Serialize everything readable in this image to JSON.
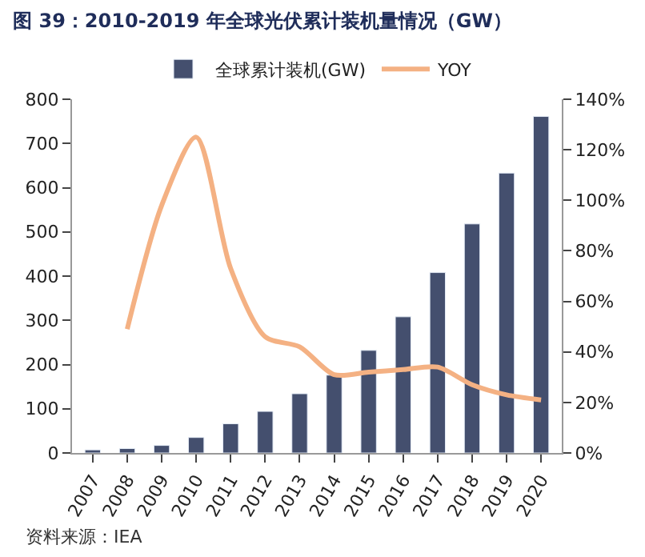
{
  "chart_data": {
    "type": "bar",
    "title": "图 39：2010-2019 年全球光伏累计装机量情况（GW）",
    "categories": [
      "2007",
      "2008",
      "2009",
      "2010",
      "2011",
      "2012",
      "2013",
      "2014",
      "2015",
      "2016",
      "2017",
      "2018",
      "2019",
      "2020"
    ],
    "series": [
      {
        "name": "全球累计装机(GW)",
        "color": "#444f6e",
        "values": [
          7,
          10,
          17,
          35,
          66,
          94,
          134,
          176,
          232,
          308,
          408,
          518,
          633,
          761
        ]
      },
      {
        "name": "YOY",
        "type": "line",
        "axis": "y2",
        "color": "#f4b183",
        "values": [
          null,
          49,
          98,
          125,
          73,
          46,
          42,
          31,
          32,
          33,
          34,
          27,
          23,
          21
        ]
      }
    ],
    "ylim": [
      0,
      800
    ],
    "yticks": [
      0,
      100,
      200,
      300,
      400,
      500,
      600,
      700,
      800
    ],
    "y2lim": [
      0,
      140
    ],
    "y2ticks": [
      {
        "value": 0,
        "label": "0%"
      },
      {
        "value": 20,
        "label": "20%"
      },
      {
        "value": 40,
        "label": "40%"
      },
      {
        "value": 60,
        "label": "60%"
      },
      {
        "value": 80,
        "label": "80%"
      },
      {
        "value": 100,
        "label": "100%"
      },
      {
        "value": 120,
        "label": "120%"
      },
      {
        "value": 140,
        "label": "140%"
      }
    ],
    "legend": "top",
    "marker": "none",
    "annotations": [
      "资料来源：IEA"
    ]
  }
}
